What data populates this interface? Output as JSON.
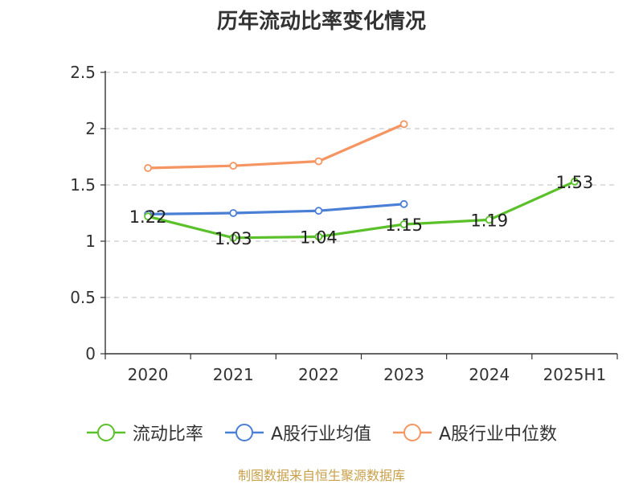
{
  "title": "历年流动比率变化情况",
  "source": "制图数据来自恒生聚源数据库",
  "chart_data": {
    "type": "line",
    "categories": [
      "2020",
      "2021",
      "2022",
      "2023",
      "2024",
      "2025H1"
    ],
    "y_ticks": [
      "0",
      "0.5",
      "1",
      "1.5",
      "2",
      "2.5"
    ],
    "ylim": [
      0,
      2.5
    ],
    "grid": true,
    "legend_position": "bottom",
    "series": [
      {
        "name": "流动比率",
        "color": "#5bc12b",
        "values": [
          1.22,
          1.03,
          1.04,
          1.15,
          1.19,
          1.53
        ],
        "labels": [
          "1.22",
          "1.03",
          "1.04",
          "1.15",
          "1.19",
          "1.53"
        ]
      },
      {
        "name": "A股行业均值",
        "color": "#4a7fd6",
        "values": [
          1.24,
          1.25,
          1.27,
          1.33,
          null,
          null
        ]
      },
      {
        "name": "A股行业中位数",
        "color": "#f59561",
        "values": [
          1.65,
          1.67,
          1.71,
          2.04,
          null,
          null
        ]
      }
    ]
  }
}
